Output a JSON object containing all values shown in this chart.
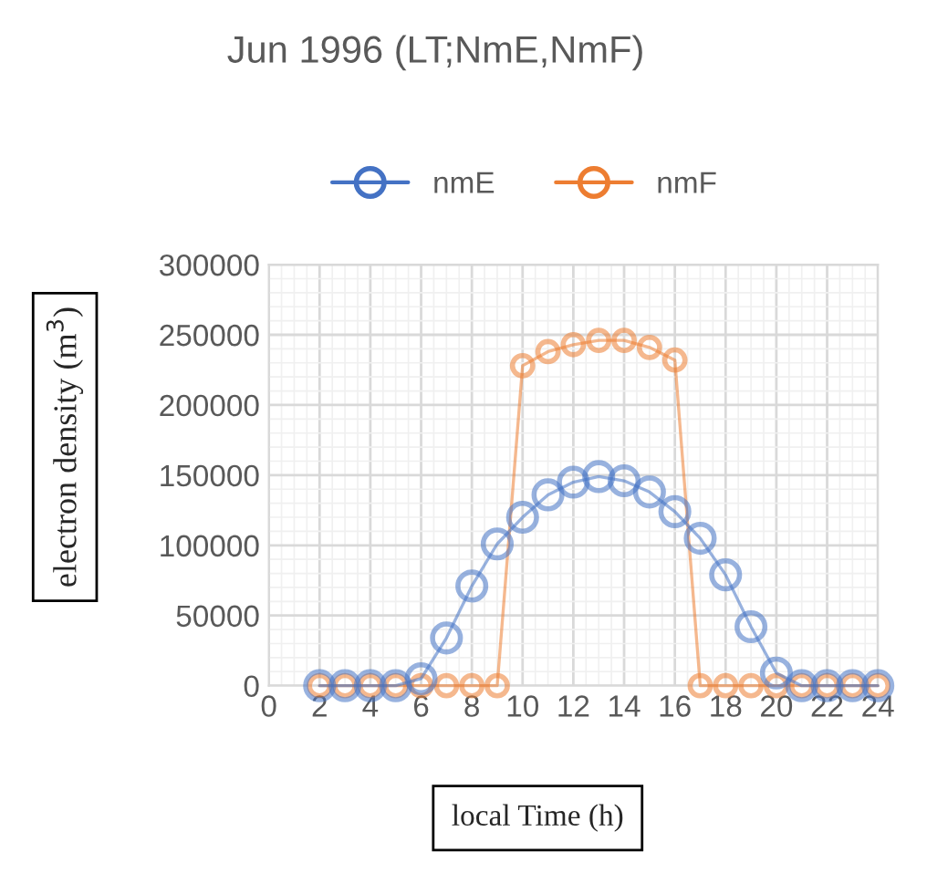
{
  "chart_data": {
    "type": "line",
    "title": "Jun 1996 (LT;NmE,NmF)",
    "xlabel": "local Time (h)",
    "ylabel": "electron density (m$^{3}$)",
    "x": [
      2,
      3,
      4,
      5,
      6,
      7,
      8,
      9,
      10,
      11,
      12,
      13,
      14,
      15,
      16,
      17,
      18,
      19,
      20,
      21,
      22,
      23,
      24
    ],
    "series": [
      {
        "name": "nmE",
        "color": "#4472c4",
        "values": [
          0,
          0,
          0,
          0,
          5000,
          34000,
          71000,
          101000,
          120000,
          136000,
          145000,
          149000,
          146000,
          138000,
          124000,
          105000,
          79000,
          42000,
          9000,
          0,
          0,
          0,
          0
        ]
      },
      {
        "name": "nmF",
        "color": "#ed7d31",
        "values": [
          0,
          0,
          0,
          0,
          0,
          0,
          0,
          0,
          228000,
          238000,
          243000,
          246000,
          246000,
          241000,
          232000,
          0,
          0,
          0,
          0,
          0,
          0,
          0,
          0
        ]
      }
    ],
    "xlim": [
      0,
      24
    ],
    "xticks": [
      0,
      2,
      4,
      6,
      8,
      10,
      12,
      14,
      16,
      18,
      20,
      22,
      24
    ],
    "ylim": [
      0,
      300000
    ],
    "yticks": [
      0,
      50000,
      100000,
      150000,
      200000,
      250000,
      300000
    ],
    "grid": true,
    "legend": "top",
    "marker": "circle",
    "line_style": "solid"
  }
}
